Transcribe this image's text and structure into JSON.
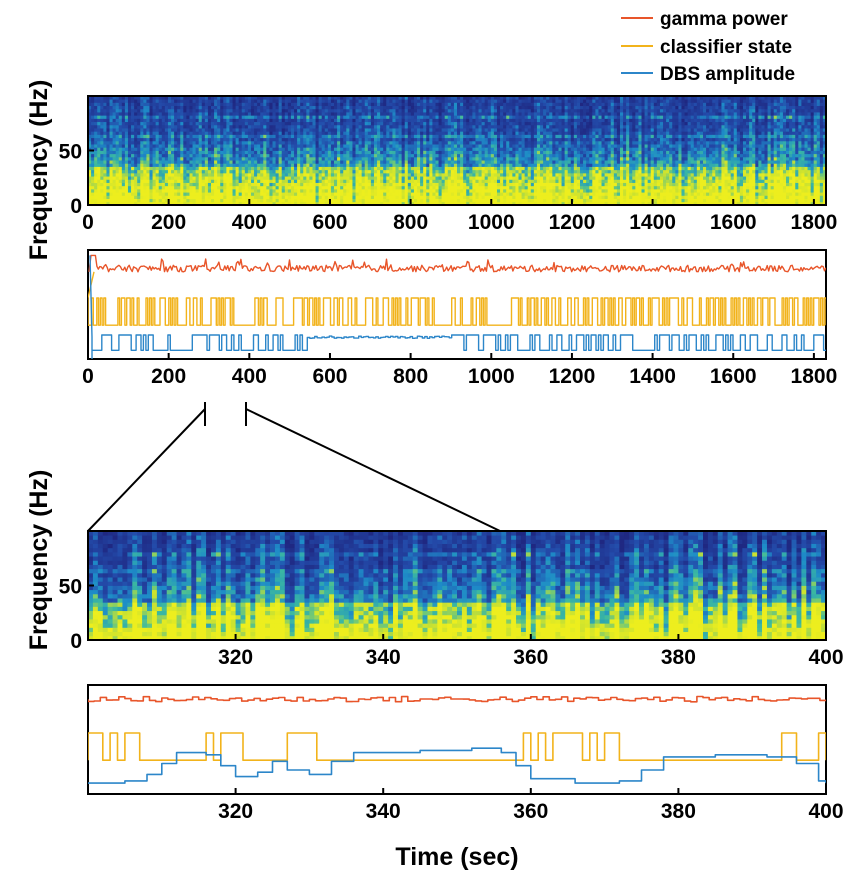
{
  "legend": {
    "items": [
      {
        "label": "gamma power",
        "color": "#E8552A"
      },
      {
        "label": "classifier state",
        "color": "#F2B31B"
      },
      {
        "label": "DBS amplitude",
        "color": "#2C86C9"
      }
    ]
  },
  "colors": {
    "spectrogram_low": "#1F2F8F",
    "spectrogram_mid": "#1F8FC0",
    "spectrogram_high": "#EDEE1E"
  },
  "chart_data": [
    {
      "id": "overview-spectrogram",
      "type": "heatmap",
      "ylabel": "Frequency (Hz)",
      "xlim": [
        0,
        1830
      ],
      "ylim": [
        0,
        100
      ],
      "xticks": [
        0,
        200,
        400,
        600,
        800,
        1000,
        1200,
        1400,
        1600,
        1800
      ],
      "yticks": [
        0,
        50
      ],
      "tick_labels": {
        "x": [
          "0",
          "200",
          "400",
          "600",
          "800",
          "1000",
          "1200",
          "1400",
          "1600",
          "1800"
        ],
        "y": [
          "0",
          "50"
        ]
      },
      "description_bands": {
        "high_power_below_hz": 35,
        "line_noise_hz": [
          60,
          80
        ]
      }
    },
    {
      "id": "overview-traces",
      "type": "line",
      "xlim": [
        0,
        1830
      ],
      "xticks": [
        0,
        200,
        400,
        600,
        800,
        1000,
        1200,
        1400,
        1600,
        1800
      ],
      "tick_labels": {
        "x": [
          "0",
          "200",
          "400",
          "600",
          "800",
          "1000",
          "1200",
          "1400",
          "1600",
          "1800"
        ]
      },
      "series": [
        {
          "name": "gamma power",
          "level": 0.83
        },
        {
          "name": "classifier state",
          "low": 0.31,
          "high": 0.56,
          "constant_intervals": [
            [
              360,
              410
            ],
            [
              860,
              900
            ],
            [
              985,
              1040
            ]
          ]
        },
        {
          "name": "DBS amplitude",
          "low": 0.08,
          "high": 0.22,
          "extended_high_interval": [
            540,
            900
          ]
        }
      ]
    },
    {
      "id": "zoom-spectrogram",
      "type": "heatmap",
      "ylabel": "Frequency (Hz)",
      "xlim": [
        300,
        400
      ],
      "ylim": [
        0,
        100
      ],
      "xticks": [
        320,
        340,
        360,
        380,
        400
      ],
      "yticks": [
        0,
        50
      ],
      "tick_labels": {
        "x": [
          "320",
          "340",
          "360",
          "380",
          "400"
        ],
        "y": [
          "0",
          "50"
        ]
      }
    },
    {
      "id": "zoom-traces",
      "type": "line",
      "xlabel": "Time (sec)",
      "xlim": [
        300,
        400
      ],
      "xticks": [
        320,
        340,
        360,
        380,
        400
      ],
      "tick_labels": {
        "x": [
          "320",
          "340",
          "360",
          "380",
          "400"
        ]
      },
      "series": [
        {
          "name": "gamma power",
          "level": 0.87
        },
        {
          "name": "classifier state",
          "high_intervals": [
            [
              300,
              302
            ],
            [
              303,
              304
            ],
            [
              305,
              307
            ],
            [
              316,
              317
            ],
            [
              318,
              321
            ],
            [
              327,
              331
            ],
            [
              359,
              360
            ],
            [
              361,
              362
            ],
            [
              363,
              367
            ],
            [
              368,
              369
            ],
            [
              370,
              372
            ],
            [
              394,
              396
            ],
            [
              399,
              400
            ]
          ]
        },
        {
          "name": "DBS amplitude",
          "points": [
            [
              300,
              0.1
            ],
            [
              305,
              0.12
            ],
            [
              308,
              0.18
            ],
            [
              310,
              0.28
            ],
            [
              312,
              0.38
            ],
            [
              316,
              0.36
            ],
            [
              318,
              0.26
            ],
            [
              320,
              0.16
            ],
            [
              323,
              0.2
            ],
            [
              325,
              0.3
            ],
            [
              327,
              0.22
            ],
            [
              330,
              0.18
            ],
            [
              333,
              0.3
            ],
            [
              336,
              0.38
            ],
            [
              345,
              0.4
            ],
            [
              352,
              0.42
            ],
            [
              356,
              0.38
            ],
            [
              358,
              0.26
            ],
            [
              360,
              0.14
            ],
            [
              366,
              0.1
            ],
            [
              372,
              0.12
            ],
            [
              375,
              0.22
            ],
            [
              378,
              0.34
            ],
            [
              385,
              0.36
            ],
            [
              392,
              0.34
            ],
            [
              396,
              0.28
            ],
            [
              399,
              0.12
            ],
            [
              400,
              0.1
            ]
          ]
        }
      ]
    }
  ]
}
